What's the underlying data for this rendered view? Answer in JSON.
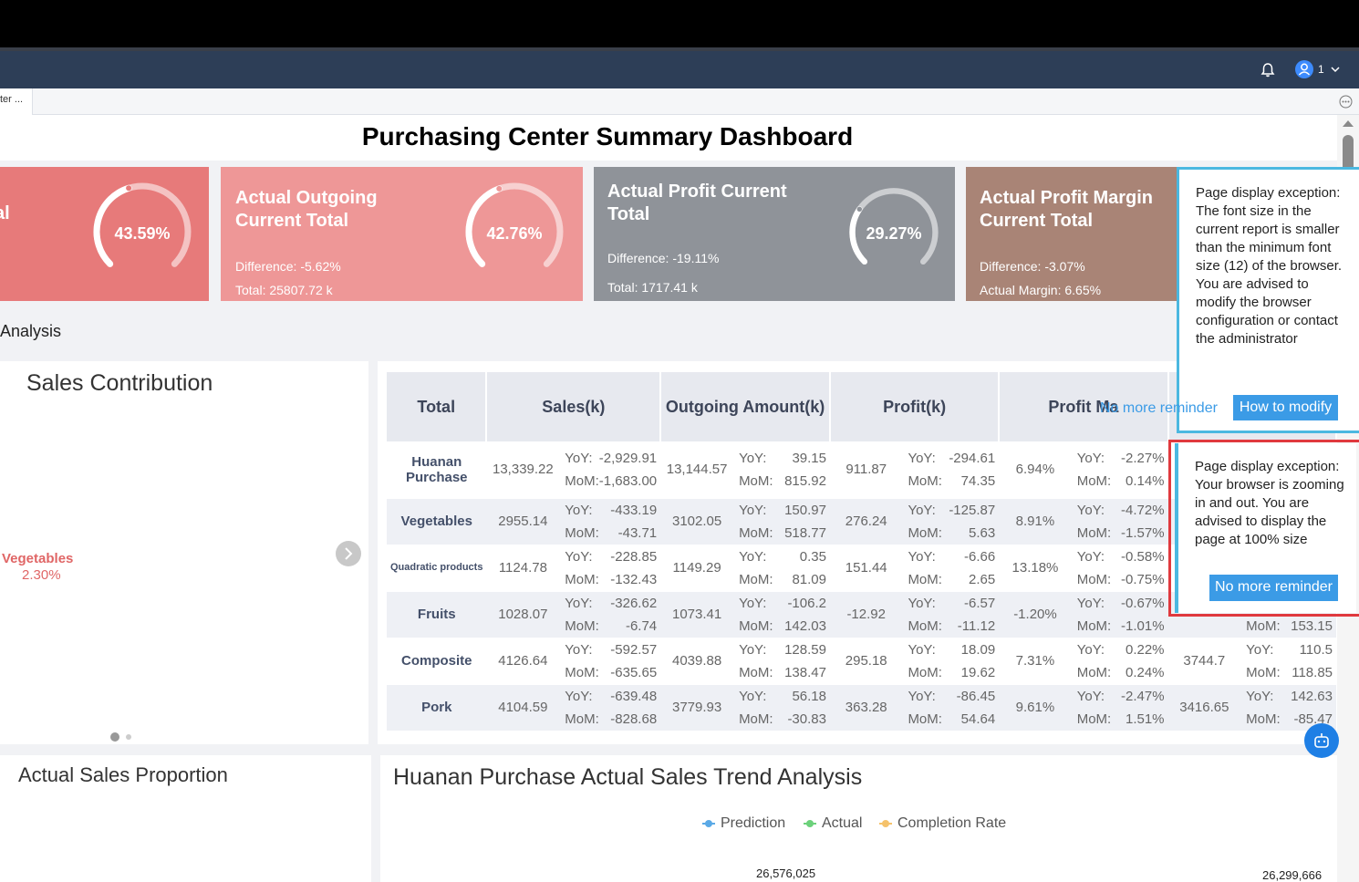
{
  "header": {
    "user_count": "1"
  },
  "tabs": [
    {
      "label": "ter ..."
    }
  ],
  "dashboard": {
    "title": "Purchasing Center Summary Dashboard"
  },
  "kpis": [
    {
      "title": "al",
      "gauge_value": "43.59%",
      "gauge_fraction": 0.4359,
      "color": "#e77a7a"
    },
    {
      "title": "Actual Outgoing Current Total",
      "line1": "Difference: -5.62%",
      "line2": "Total: 25807.72 k",
      "gauge_value": "42.76%",
      "gauge_fraction": 0.4276,
      "color": "#ee9797"
    },
    {
      "title": "Actual Profit Current Total",
      "line1": "Difference: -19.11%",
      "line2": "Total: 1717.41 k",
      "gauge_value": "29.27%",
      "gauge_fraction": 0.2927,
      "color": "#8f9399"
    },
    {
      "title": "Actual Profit Margin Current Total",
      "line1": "Difference: -3.07%",
      "line2": "Actual Margin: 6.65%",
      "color": "#a98476"
    }
  ],
  "section": {
    "title": "Analysis"
  },
  "sales_contribution": {
    "title": "Sales Contribution",
    "slice_label": "Vegetables",
    "slice_pct": "2.30%"
  },
  "table": {
    "headers": [
      "Total",
      "Sales(k)",
      "Outgoing Amount(k)",
      "Profit(k)",
      "Profit Ma",
      ""
    ],
    "yoy_label": "YoY:",
    "mom_label": "MoM:",
    "rows": [
      {
        "name": "Huanan Purchase",
        "sales": "13,339.22",
        "sales_yoy": "-2,929.91",
        "sales_mom": "-1,683.00",
        "out": "13,144.57",
        "out_yoy": "39.15",
        "out_mom": "815.92",
        "profit": "911.87",
        "profit_yoy": "-294.61",
        "profit_mom": "74.35",
        "margin": "6.94%",
        "margin_yoy": "-2.27%",
        "margin_mom": "0.14%",
        "last": "",
        "last_yoy": "",
        "last_mom": "",
        "last_yoy_label": "",
        "last_mom_label": ""
      },
      {
        "name": "Vegetables",
        "sales": "2955.14",
        "sales_yoy": "-433.19",
        "sales_mom": "-43.71",
        "out": "3102.05",
        "out_yoy": "150.97",
        "out_mom": "518.77",
        "profit": "276.24",
        "profit_yoy": "-125.87",
        "profit_mom": "5.63",
        "margin": "8.91%",
        "margin_yoy": "-4.72%",
        "margin_mom": "-1.57%",
        "last": "",
        "last_yoy": "",
        "last_mom": "",
        "last_yoy_label": "",
        "last_mom_label": ""
      },
      {
        "name": "Quadratic products",
        "sales": "1124.78",
        "sales_yoy": "-228.85",
        "sales_mom": "-132.43",
        "out": "1149.29",
        "out_yoy": "0.35",
        "out_mom": "81.09",
        "profit": "151.44",
        "profit_yoy": "-6.66",
        "profit_mom": "2.65",
        "margin": "13.18%",
        "margin_yoy": "-0.58%",
        "margin_mom": "-0.75%",
        "last": "",
        "last_yoy": "",
        "last_mom": "",
        "last_yoy_label": "",
        "last_mom_label": ""
      },
      {
        "name": "Fruits",
        "sales": "1028.07",
        "sales_yoy": "-326.62",
        "sales_mom": "-6.74",
        "out": "1073.41",
        "out_yoy": "-106.2",
        "out_mom": "142.03",
        "profit": "-12.92",
        "profit_yoy": "-6.57",
        "profit_mom": "-11.12",
        "margin": "-1.20%",
        "margin_yoy": "-0.67%",
        "margin_mom": "-1.01%",
        "last": "",
        "last_yoy": "",
        "last_mom": "153.15",
        "last_yoy_label": "",
        "last_mom_label": "MoM:"
      },
      {
        "name": "Composite",
        "sales": "4126.64",
        "sales_yoy": "-592.57",
        "sales_mom": "-635.65",
        "out": "4039.88",
        "out_yoy": "128.59",
        "out_mom": "138.47",
        "profit": "295.18",
        "profit_yoy": "18.09",
        "profit_mom": "19.62",
        "margin": "7.31%",
        "margin_yoy": "0.22%",
        "margin_mom": "0.24%",
        "last": "3744.7",
        "last_yoy": "110.5",
        "last_mom": "118.85",
        "last_yoy_label": "YoY:",
        "last_mom_label": "MoM:"
      },
      {
        "name": "Pork",
        "sales": "4104.59",
        "sales_yoy": "-639.48",
        "sales_mom": "-828.68",
        "out": "3779.93",
        "out_yoy": "56.18",
        "out_mom": "-30.83",
        "profit": "363.28",
        "profit_yoy": "-86.45",
        "profit_mom": "54.64",
        "margin": "9.61%",
        "margin_yoy": "-2.47%",
        "margin_mom": "1.51%",
        "last": "3416.65",
        "last_yoy": "142.63",
        "last_mom": "-85.47",
        "last_yoy_label": "YoY:",
        "last_mom_label": "MoM:"
      }
    ]
  },
  "actual_sales_proportion": {
    "title": "Actual Sales Proportion"
  },
  "trend": {
    "title": "Huanan Purchase Actual Sales Trend Analysis",
    "legend": [
      {
        "name": "Prediction",
        "color": "#5aa9e6"
      },
      {
        "name": "Actual",
        "color": "#6cd17b"
      },
      {
        "name": "Completion Rate",
        "color": "#f5c26b"
      }
    ],
    "value_labels": [
      "26,576,025",
      "26,299,666"
    ]
  },
  "popups": {
    "font": {
      "text": "Page display exception: The font size in the current report is smaller than the minimum font size (12) of the browser. You are advised to modify the browser configuration or contact the administrator",
      "dismiss": "No more reminder",
      "action": "How to modify"
    },
    "zoom": {
      "text": "Page display exception: Your browser is zooming in and out. You are advised to display the page at 100% size",
      "dismiss": "No more reminder"
    }
  }
}
